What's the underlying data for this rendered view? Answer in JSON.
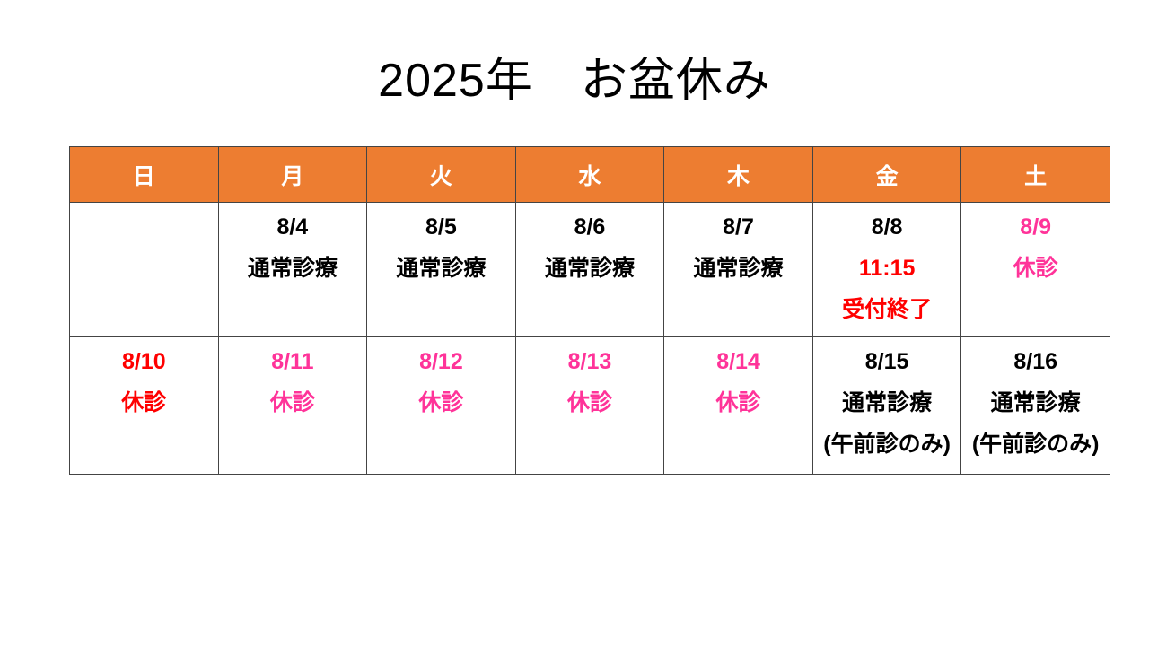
{
  "page": {
    "title": "2025年　お盆休み"
  },
  "colors": {
    "black": "#000000",
    "red": "#FF0000",
    "pink": "#FF3399",
    "header_bg": "#ED7D31",
    "header_text": "#FFFFFF",
    "border": "#444444"
  },
  "calendar": {
    "weekdays": [
      "日",
      "月",
      "火",
      "水",
      "木",
      "金",
      "土"
    ],
    "rows": [
      {
        "cells": [
          {
            "lines": []
          },
          {
            "lines": [
              {
                "text": "8/4",
                "color": "black"
              },
              {
                "text": "通常診療",
                "color": "black"
              }
            ]
          },
          {
            "lines": [
              {
                "text": "8/5",
                "color": "black"
              },
              {
                "text": "通常診療",
                "color": "black"
              }
            ]
          },
          {
            "lines": [
              {
                "text": "8/6",
                "color": "black"
              },
              {
                "text": "通常診療",
                "color": "black"
              }
            ]
          },
          {
            "lines": [
              {
                "text": "8/7",
                "color": "black"
              },
              {
                "text": "通常診療",
                "color": "black"
              }
            ]
          },
          {
            "lines": [
              {
                "text": "8/8",
                "color": "black"
              },
              {
                "text": "11:15",
                "color": "red"
              },
              {
                "text": "受付終了",
                "color": "red"
              }
            ]
          },
          {
            "lines": [
              {
                "text": "8/9",
                "color": "pink"
              },
              {
                "text": "休診",
                "color": "pink"
              }
            ]
          }
        ]
      },
      {
        "cells": [
          {
            "lines": [
              {
                "text": "8/10",
                "color": "red"
              },
              {
                "text": "休診",
                "color": "red"
              }
            ]
          },
          {
            "lines": [
              {
                "text": "8/11",
                "color": "pink"
              },
              {
                "text": "休診",
                "color": "pink"
              }
            ]
          },
          {
            "lines": [
              {
                "text": "8/12",
                "color": "pink"
              },
              {
                "text": "休診",
                "color": "pink"
              }
            ]
          },
          {
            "lines": [
              {
                "text": "8/13",
                "color": "pink"
              },
              {
                "text": "休診",
                "color": "pink"
              }
            ]
          },
          {
            "lines": [
              {
                "text": "8/14",
                "color": "pink"
              },
              {
                "text": "休診",
                "color": "pink"
              }
            ]
          },
          {
            "lines": [
              {
                "text": "8/15",
                "color": "black"
              },
              {
                "text": "通常診療",
                "color": "black"
              },
              {
                "text": "(午前診のみ)",
                "color": "black"
              }
            ]
          },
          {
            "lines": [
              {
                "text": "8/16",
                "color": "black"
              },
              {
                "text": "通常診療",
                "color": "black"
              },
              {
                "text": "(午前診のみ)",
                "color": "black"
              }
            ]
          }
        ]
      }
    ]
  }
}
